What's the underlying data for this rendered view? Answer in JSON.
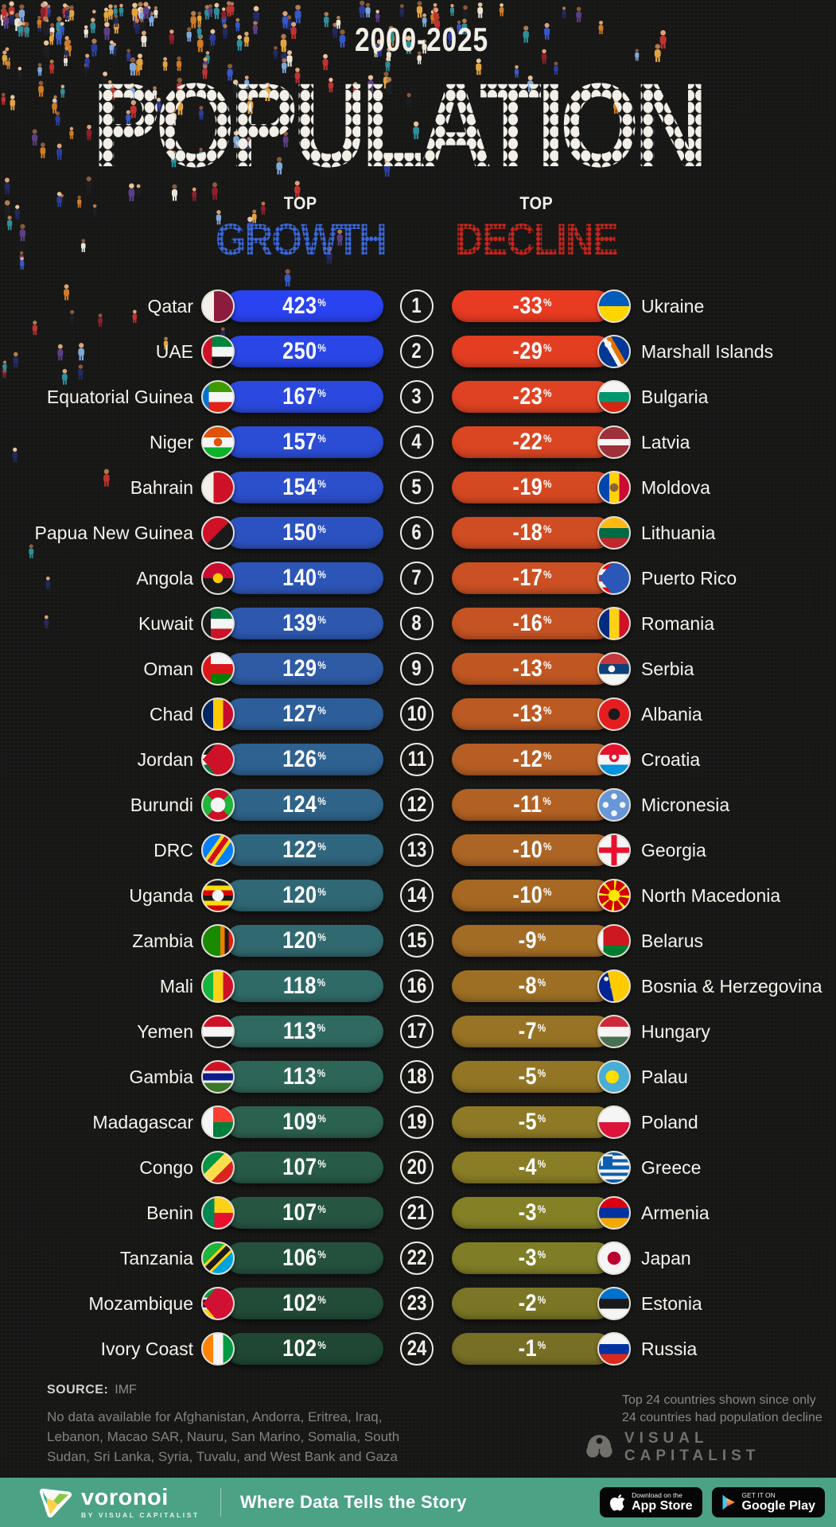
{
  "title": {
    "period": "2000-2025",
    "main": "POPULATION",
    "dot_color": "#F2EFE8"
  },
  "columns": {
    "growth": {
      "top_label": "TOP",
      "name": "GROWTH",
      "dot_color": "#3A67D9"
    },
    "decline": {
      "top_label": "TOP",
      "name": "DECLINE",
      "dot_color": "#C6251C"
    }
  },
  "unit": "%",
  "rows": [
    {
      "rank": "1",
      "growth": {
        "country": "Qatar",
        "value": "423",
        "bar_color": "#2A43F0",
        "flag": "linear-gradient(90deg,#f4f0e8 0 37%,#8d1b3d 37%)"
      },
      "decline": {
        "country": "Ukraine",
        "value": "-33",
        "bar_color": "#E93B22",
        "flag": "linear-gradient(180deg,#005bbb 0 50%,#ffd500 50%)"
      }
    },
    {
      "rank": "2",
      "growth": {
        "country": "UAE",
        "value": "250",
        "bar_color": "#2A46E7",
        "flag": "linear-gradient(90deg,#ce1126 0 30%,transparent 30%),linear-gradient(180deg,#00843d 0 34%,#f5f5f5 34% 67%,#141414 67%)"
      },
      "decline": {
        "country": "Marshall Islands",
        "value": "-29",
        "bar_color": "#E43E22",
        "flag": "radial-gradient(circle at 30% 26%,#f5f5f5 0 4px,transparent 4.5px),linear-gradient(60deg,transparent 0 40%,#f5f5f5 40% 50%,#e57200 50% 62%,transparent 62%),linear-gradient(#003893,#003893)"
      }
    },
    {
      "rank": "3",
      "growth": {
        "country": "Equatorial Guinea",
        "value": "167",
        "bar_color": "#2B49DE",
        "flag": "linear-gradient(90deg,#0073ce 0 20%,transparent 20%),linear-gradient(180deg,#3e9a00 0 34%,#f5f5f5 34% 67%,#e32118 67%)"
      },
      "decline": {
        "country": "Bulgaria",
        "value": "-23",
        "bar_color": "#DF4222",
        "flag": "linear-gradient(180deg,#f5f5f5 0 34%,#00966e 34% 67%,#d62612 67%)"
      }
    },
    {
      "rank": "4",
      "growth": {
        "country": "Niger",
        "value": "157",
        "bar_color": "#2B4CD4",
        "flag": "radial-gradient(circle at 50% 50%,#e05206 0 5px,transparent 5.5px),linear-gradient(180deg,#e05206 0 34%,#f5f5f5 34% 67%,#0db02b 67%)"
      },
      "decline": {
        "country": "Latvia",
        "value": "-22",
        "bar_color": "#DA4522",
        "flag": "linear-gradient(180deg,#9e3039 0 40%,#f5f5f5 40% 60%,#9e3039 60%)"
      }
    },
    {
      "rank": "5",
      "growth": {
        "country": "Bahrain",
        "value": "154",
        "bar_color": "#2C4FCB",
        "flag": "linear-gradient(90deg,#f4f0e8 0 35%,#ce1126 35%)"
      },
      "decline": {
        "country": "Moldova",
        "value": "-19",
        "bar_color": "#D54922",
        "flag": "radial-gradient(circle at 50% 50%,#8c6239 0 5px,transparent 5.5px),linear-gradient(90deg,#0046ae 0 34%,#ffd200 34% 67%,#cc092f 67%)"
      }
    },
    {
      "rank": "6",
      "growth": {
        "country": "Papua New Guinea",
        "value": "150",
        "bar_color": "#2C52C1",
        "flag": "linear-gradient(135deg,#ce1126 0 50%,#1a1a1a 50%)"
      },
      "decline": {
        "country": "Lithuania",
        "value": "-18",
        "bar_color": "#D04C22",
        "flag": "linear-gradient(180deg,#fdb913 0 34%,#006a44 34% 67%,#c1272d 67%)"
      }
    },
    {
      "rank": "7",
      "growth": {
        "country": "Angola",
        "value": "140",
        "bar_color": "#2D55B7",
        "flag": "radial-gradient(circle at 50% 50%,#ffcb00 0 6px,transparent 6.5px),linear-gradient(180deg,#cc092f 0 50%,#1a1a1a 50%)"
      },
      "decline": {
        "country": "Puerto Rico",
        "value": "-17",
        "bar_color": "#CB5023",
        "flag": "conic-gradient(from 40deg at 0% 50%,#2b57b8 0 100deg,transparent 100deg),linear-gradient(180deg,#ed0000 0 20%,#f5f5f5 20% 40%,#ed0000 40% 60%,#f5f5f5 60% 80%,#ed0000 80%)"
      }
    },
    {
      "rank": "8",
      "growth": {
        "country": "Kuwait",
        "value": "139",
        "bar_color": "#2D58AE",
        "flag": "linear-gradient(90deg,#1a1a1a 0 26%,transparent 26%),linear-gradient(180deg,#007a3d 0 34%,#f5f5f5 34% 67%,#ce1126 67%)"
      },
      "decline": {
        "country": "Romania",
        "value": "-16",
        "bar_color": "#C55323",
        "flag": "linear-gradient(90deg,#002b7f 0 34%,#fcd116 34% 67%,#ce1126 67%)"
      }
    },
    {
      "rank": "9",
      "growth": {
        "country": "Oman",
        "value": "129",
        "bar_color": "#2E5BA4",
        "flag": "linear-gradient(90deg,#db161b 0 26%,transparent 26%),linear-gradient(180deg,#f5f5f5 0 34%,#db161b 34% 67%,#008000 67%)"
      },
      "decline": {
        "country": "Serbia",
        "value": "-13",
        "bar_color": "#C05723",
        "flag": "radial-gradient(circle at 42% 50%,#f5f5f5 0 4px,transparent 4.5px),linear-gradient(180deg,#c6363c 0 34%,#0c4076 34% 67%,#f5f5f5 67%)"
      }
    },
    {
      "rank": "10",
      "growth": {
        "country": "Chad",
        "value": "127",
        "bar_color": "#2E5E9A",
        "flag": "linear-gradient(90deg,#002664 0 34%,#fecb00 34% 67%,#c60c30 67%)"
      },
      "decline": {
        "country": "Albania",
        "value": "-13",
        "bar_color": "#BB5A23",
        "flag": "radial-gradient(circle at 50% 50%,#1a1a1a 0 7px,transparent 7.5px),linear-gradient(#e41e20,#e41e20)"
      }
    },
    {
      "rank": "11",
      "growth": {
        "country": "Jordan",
        "value": "126",
        "bar_color": "#2F6191",
        "flag": "conic-gradient(from 40deg at 0% 50%,#ce1126 0 100deg,transparent 100deg),linear-gradient(180deg,#1a1a1a 0 34%,#f5f5f5 34% 67%,#007a3d 67%)"
      },
      "decline": {
        "country": "Croatia",
        "value": "-12",
        "bar_color": "#B65E24",
        "flag": "radial-gradient(circle at 50% 42%,#f5f5f5 0 3px,#e8112d 3px 6px,transparent 6.5px),linear-gradient(180deg,#e8112d 0 34%,#f5f5f5 34% 67%,#0093dd 67%)"
      }
    },
    {
      "rank": "12",
      "growth": {
        "country": "Burundi",
        "value": "124",
        "bar_color": "#2F6387",
        "flag": "radial-gradient(circle at 50% 50%,#f5f5f5 0 9px,transparent 9.5px),conic-gradient(from 315deg,#ce1126 0 90deg,#1eb53a 90deg 180deg,#ce1126 180deg 270deg,#1eb53a 270deg)"
      },
      "decline": {
        "country": "Micronesia",
        "value": "-11",
        "bar_color": "#B16124",
        "flag": "radial-gradient(circle at 50% 22%,#f5f5f5 0 3.5px,transparent 4px),radial-gradient(circle at 50% 78%,#f5f5f5 0 3.5px,transparent 4px),radial-gradient(circle at 22% 50%,#f5f5f5 0 3.5px,transparent 4px),radial-gradient(circle at 78% 50%,#f5f5f5 0 3.5px,transparent 4px),linear-gradient(#6797d6,#6797d6)"
      }
    },
    {
      "rank": "13",
      "growth": {
        "country": "DRC",
        "value": "122",
        "bar_color": "#30657E",
        "flag": "linear-gradient(125deg,#007fff 0 36%,#f7d618 36% 44%,#ce1021 44% 56%,#f7d618 56% 64%,#007fff 64%)"
      },
      "decline": {
        "country": "Georgia",
        "value": "-10",
        "bar_color": "#AC6524",
        "flag": "linear-gradient(90deg,transparent 0 41%,#e8112d 41% 59%,transparent 59%),linear-gradient(180deg,transparent 0 41%,#e8112d 41% 59%,transparent 59%),linear-gradient(#f5f5f5,#f5f5f5)"
      }
    },
    {
      "rank": "14",
      "growth": {
        "country": "Uganda",
        "value": "120",
        "bar_color": "#306875",
        "flag": "radial-gradient(circle at 50% 50%,#f5f5f5 0 7px,transparent 7.5px),linear-gradient(180deg,#1a1a1a 0 17%,#fcdc04 17% 33%,#d90000 33% 50%,#1a1a1a 50% 67%,#fcdc04 67% 83%,#d90000 83%)"
      },
      "decline": {
        "country": "North Macedonia",
        "value": "-10",
        "bar_color": "#A76824",
        "flag": "radial-gradient(circle at 50% 50%,#ffe600 0 7px,transparent 7.5px),repeating-conic-gradient(#ffe600 0 10deg,#d20000 10deg 45deg)"
      }
    },
    {
      "rank": "15",
      "growth": {
        "country": "Zambia",
        "value": "120",
        "bar_color": "#30696F",
        "flag": "linear-gradient(90deg,transparent 0 58%,#ef7d00 58% 72%,#1a1a1a 72% 86%,#de2010 86%),linear-gradient(#198a00,#198a00)"
      },
      "decline": {
        "country": "Belarus",
        "value": "-9",
        "bar_color": "#A26C25",
        "flag": "linear-gradient(90deg,#f5f5f5 0 14%,transparent 14%),linear-gradient(180deg,#ce1720 0 64%,#007c30 64%)"
      }
    },
    {
      "rank": "16",
      "growth": {
        "country": "Mali",
        "value": "118",
        "bar_color": "#306A67",
        "flag": "linear-gradient(90deg,#14b53a 0 34%,#fcd116 34% 67%,#ce1126 67%)"
      },
      "decline": {
        "country": "Bosnia & Herzegovina",
        "value": "-8",
        "bar_color": "#9D6F25",
        "flag": "conic-gradient(from 90deg at 28% 0%,#fecb00 0 78deg,transparent 78deg),radial-gradient(circle at 24% 26%,#f5f5f5 0 2.5px,transparent 3px),radial-gradient(circle at 45% 52%,#f5f5f5 0 2.5px,transparent 3px),radial-gradient(circle at 66% 78%,#f5f5f5 0 2.5px,transparent 3px),linear-gradient(#002395,#002395)"
      }
    },
    {
      "rank": "17",
      "growth": {
        "country": "Yemen",
        "value": "113",
        "bar_color": "#2F6960",
        "flag": "linear-gradient(180deg,#ce1126 0 34%,#f5f5f5 34% 67%,#1a1a1a 67%)"
      },
      "decline": {
        "country": "Hungary",
        "value": "-7",
        "bar_color": "#987325",
        "flag": "linear-gradient(180deg,#ce2939 0 34%,#f5f5f5 34% 67%,#477050 67%)"
      }
    },
    {
      "rank": "18",
      "growth": {
        "country": "Gambia",
        "value": "113",
        "bar_color": "#2D6658",
        "flag": "linear-gradient(180deg,#ce1126 0 30%,#f5f5f5 30% 38%,#0c1c8c 38% 62%,#f5f5f5 62% 70%,#3a7728 70%)"
      },
      "decline": {
        "country": "Palau",
        "value": "-5",
        "bar_color": "#937625",
        "flag": "radial-gradient(circle at 44% 50%,#ffde00 0 8px,transparent 8.5px),linear-gradient(#4aadd6,#4aadd6)"
      }
    },
    {
      "rank": "19",
      "growth": {
        "country": "Madagascar",
        "value": "109",
        "bar_color": "#2B614F",
        "flag": "linear-gradient(90deg,#f5f5f5 0 34%,transparent 34%),linear-gradient(180deg,#fc3d32 0 50%,#007e3a 50%)"
      },
      "decline": {
        "country": "Poland",
        "value": "-5",
        "bar_color": "#8E7A26",
        "flag": "linear-gradient(180deg,#f5f5f5 0 50%,#dc143c 50%)"
      }
    },
    {
      "rank": "20",
      "growth": {
        "country": "Congo",
        "value": "107",
        "bar_color": "#285A48",
        "flag": "linear-gradient(135deg,#009543 0 38%,#fbde4a 38% 62%,#dc241f 62%)"
      },
      "decline": {
        "country": "Greece",
        "value": "-4",
        "bar_color": "#897D26",
        "flag": "linear-gradient(90deg,transparent 0 16%,#f5f5f5 16% 29%,transparent 29%) 0 0/45% 45% no-repeat,linear-gradient(180deg,transparent 0 16%,#f5f5f5 16% 29%,transparent 29%) 0 0/45% 45% no-repeat,linear-gradient(#0d5eaf,#0d5eaf) 0 0/45% 45% no-repeat,linear-gradient(180deg,#0d5eaf 0 11%,#f5f5f5 11% 22%,#0d5eaf 22% 33%,#f5f5f5 33% 44%,#0d5eaf 44% 56%,#f5f5f5 56% 67%,#0d5eaf 67% 78%,#f5f5f5 78% 89%,#0d5eaf 89%)"
      }
    },
    {
      "rank": "21",
      "growth": {
        "country": "Benin",
        "value": "107",
        "bar_color": "#265542",
        "flag": "linear-gradient(90deg,#008751 0 38%,transparent 38%),linear-gradient(180deg,#fcd116 0 50%,#e8112d 50%)"
      },
      "decline": {
        "country": "Armenia",
        "value": "-3",
        "bar_color": "#848026",
        "flag": "linear-gradient(180deg,#d90012 0 34%,#0033a0 34% 67%,#f2a800 67%)"
      }
    },
    {
      "rank": "22",
      "growth": {
        "country": "Tanzania",
        "value": "106",
        "bar_color": "#24513D",
        "flag": "linear-gradient(135deg,#1eb53a 0 37%,#fcd116 37% 43%,#1a1a1a 43% 57%,#fcd116 57% 63%,#00a3dd 63%)"
      },
      "decline": {
        "country": "Japan",
        "value": "-3",
        "bar_color": "#7F7E26",
        "flag": "radial-gradient(circle at 50% 50%,#bc002d 0 8px,transparent 8.5px),linear-gradient(#f5f5f5,#f5f5f5)"
      }
    },
    {
      "rank": "23",
      "growth": {
        "country": "Mozambique",
        "value": "102",
        "bar_color": "#224C38",
        "flag": "conic-gradient(from 40deg at 0% 50%,#d21034 0 100deg,transparent 100deg),linear-gradient(180deg,#009639 0 30%,#f5f5f5 30% 37%,#1a1a1a 37% 63%,#f5f5f5 63% 70%,#ffd100 70%)"
      },
      "decline": {
        "country": "Estonia",
        "value": "-2",
        "bar_color": "#7B7626",
        "flag": "linear-gradient(180deg,#0072ce 0 34%,#1a1a1a 34% 67%,#f5f5f5 67%)"
      }
    },
    {
      "rank": "24",
      "growth": {
        "country": "Ivory Coast",
        "value": "102",
        "bar_color": "#1F4733",
        "flag": "linear-gradient(90deg,#ff8200 0 34%,#f5f5f5 34% 67%,#009a44 67%)"
      },
      "decline": {
        "country": "Russia",
        "value": "-1",
        "bar_color": "#786F26",
        "flag": "linear-gradient(180deg,#f5f5f5 0 34%,#0033a0 34% 67%,#da291c 67%)"
      }
    }
  ],
  "footer": {
    "source_label": "SOURCE:",
    "source_value": "IMF",
    "note_lines": [
      "No data available for Afghanistan, Andorra, Eritrea, Iraq,",
      "Lebanon, Macao SAR, Nauru, San Marino, Somalia, South",
      "Sudan, Sri Lanka, Syria, Tuvalu, and West Bank and Gaza"
    ],
    "side_note_lines": [
      "Top 24 countries shown since only",
      "24 countries had population decline"
    ],
    "brand": "VISUAL CAPITALIST"
  },
  "bottom_bar": {
    "bar_color": "#4CA284",
    "logo_text": "voronoi",
    "logo_sub": "BY VISUAL CAPITALIST",
    "tagline": "Where Data Tells the Story",
    "app_store": {
      "line1": "Download on the",
      "line2": "App Store"
    },
    "google_play": {
      "line1": "GET IT ON",
      "line2": "Google Play"
    }
  },
  "chart_data": {
    "type": "bar",
    "title": "Population 2000-2025",
    "series": [
      {
        "name": "Top Growth (%)",
        "categories": [
          "Qatar",
          "UAE",
          "Equatorial Guinea",
          "Niger",
          "Bahrain",
          "Papua New Guinea",
          "Angola",
          "Kuwait",
          "Oman",
          "Chad",
          "Jordan",
          "Burundi",
          "DRC",
          "Uganda",
          "Zambia",
          "Mali",
          "Yemen",
          "Gambia",
          "Madagascar",
          "Congo",
          "Benin",
          "Tanzania",
          "Mozambique",
          "Ivory Coast"
        ],
        "values": [
          423,
          250,
          167,
          157,
          154,
          150,
          140,
          139,
          129,
          127,
          126,
          124,
          122,
          120,
          120,
          118,
          113,
          113,
          109,
          107,
          107,
          106,
          102,
          102
        ]
      },
      {
        "name": "Top Decline (%)",
        "categories": [
          "Ukraine",
          "Marshall Islands",
          "Bulgaria",
          "Latvia",
          "Moldova",
          "Lithuania",
          "Puerto Rico",
          "Romania",
          "Serbia",
          "Albania",
          "Croatia",
          "Micronesia",
          "Georgia",
          "North Macedonia",
          "Belarus",
          "Bosnia & Herzegovina",
          "Hungary",
          "Palau",
          "Poland",
          "Greece",
          "Armenia",
          "Japan",
          "Estonia",
          "Russia"
        ],
        "values": [
          -33,
          -29,
          -23,
          -22,
          -19,
          -18,
          -17,
          -16,
          -13,
          -13,
          -12,
          -11,
          -10,
          -10,
          -9,
          -8,
          -7,
          -5,
          -5,
          -4,
          -3,
          -3,
          -2,
          -1
        ]
      }
    ]
  }
}
